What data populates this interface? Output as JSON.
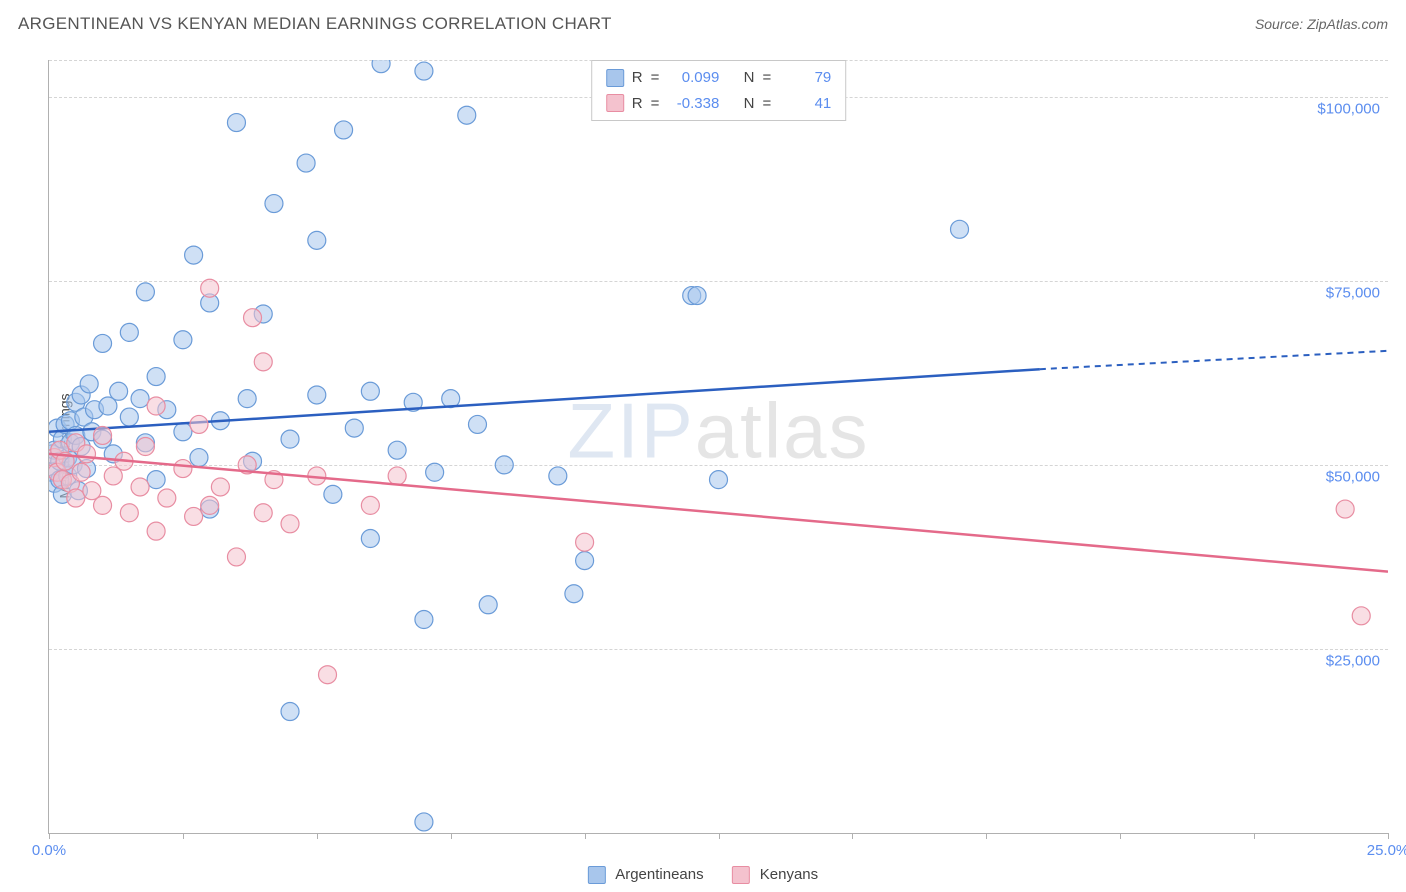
{
  "title": "ARGENTINEAN VS KENYAN MEDIAN EARNINGS CORRELATION CHART",
  "source_label": "Source: ZipAtlas.com",
  "watermark": {
    "part1": "ZIP",
    "part2": "atlas"
  },
  "ylabel": "Median Earnings",
  "chart": {
    "type": "scatter",
    "xlim": [
      0,
      25
    ],
    "ylim": [
      0,
      105000
    ],
    "x_ticks": [
      0,
      2.5,
      5,
      7.5,
      10,
      12.5,
      15,
      17.5,
      20,
      22.5,
      25
    ],
    "x_tick_labels": {
      "0": "0.0%",
      "25": "25.0%"
    },
    "y_gridlines": [
      25000,
      50000,
      75000,
      100000,
      105000
    ],
    "y_tick_labels": {
      "25000": "$25,000",
      "50000": "$50,000",
      "75000": "$75,000",
      "100000": "$100,000"
    },
    "background_color": "#ffffff",
    "grid_color": "#d5d5d5",
    "axis_color": "#b0b0b0",
    "tick_label_color": "#5b8def",
    "point_radius": 9,
    "point_opacity": 0.55,
    "series": [
      {
        "name": "Argentineans",
        "color_fill": "#a8c6ec",
        "color_stroke": "#6a9bd8",
        "line_color": "#2b5fc0",
        "r_value": "0.099",
        "n_value": "79",
        "regression": {
          "x1": 0,
          "y1": 54500,
          "x2": 18.5,
          "y2": 63000,
          "x2_dash": 25,
          "y2_dash": 65500
        },
        "points": [
          [
            0.05,
            49000
          ],
          [
            0.05,
            51500
          ],
          [
            0.1,
            47500
          ],
          [
            0.1,
            52000
          ],
          [
            0.15,
            55000
          ],
          [
            0.2,
            48000
          ],
          [
            0.2,
            50500
          ],
          [
            0.25,
            53500
          ],
          [
            0.25,
            46000
          ],
          [
            0.3,
            55500
          ],
          [
            0.35,
            51000
          ],
          [
            0.35,
            48500
          ],
          [
            0.4,
            56000
          ],
          [
            0.4,
            53000
          ],
          [
            0.45,
            50000
          ],
          [
            0.5,
            58500
          ],
          [
            0.5,
            54000
          ],
          [
            0.55,
            46500
          ],
          [
            0.6,
            59500
          ],
          [
            0.6,
            52500
          ],
          [
            0.65,
            56500
          ],
          [
            0.7,
            49500
          ],
          [
            0.75,
            61000
          ],
          [
            0.8,
            54500
          ],
          [
            0.85,
            57500
          ],
          [
            1.0,
            66500
          ],
          [
            1.0,
            53500
          ],
          [
            1.1,
            58000
          ],
          [
            1.2,
            51500
          ],
          [
            1.3,
            60000
          ],
          [
            1.5,
            56500
          ],
          [
            1.5,
            68000
          ],
          [
            1.7,
            59000
          ],
          [
            1.8,
            53000
          ],
          [
            1.8,
            73500
          ],
          [
            2.0,
            62000
          ],
          [
            2.0,
            48000
          ],
          [
            2.2,
            57500
          ],
          [
            2.5,
            67000
          ],
          [
            2.5,
            54500
          ],
          [
            2.7,
            78500
          ],
          [
            2.8,
            51000
          ],
          [
            3.0,
            44000
          ],
          [
            3.0,
            72000
          ],
          [
            3.2,
            56000
          ],
          [
            3.5,
            96500
          ],
          [
            3.7,
            59000
          ],
          [
            3.8,
            50500
          ],
          [
            4.0,
            70500
          ],
          [
            4.2,
            85500
          ],
          [
            4.5,
            16500
          ],
          [
            4.5,
            53500
          ],
          [
            4.8,
            91000
          ],
          [
            5.0,
            59500
          ],
          [
            5.0,
            80500
          ],
          [
            5.3,
            46000
          ],
          [
            5.5,
            95500
          ],
          [
            5.7,
            55000
          ],
          [
            6.0,
            40000
          ],
          [
            6.0,
            60000
          ],
          [
            6.2,
            104500
          ],
          [
            6.5,
            52000
          ],
          [
            6.8,
            58500
          ],
          [
            7.0,
            103500
          ],
          [
            7.0,
            29000
          ],
          [
            7.0,
            1500
          ],
          [
            7.2,
            49000
          ],
          [
            7.5,
            59000
          ],
          [
            7.8,
            97500
          ],
          [
            8.0,
            55500
          ],
          [
            8.2,
            31000
          ],
          [
            8.5,
            50000
          ],
          [
            9.5,
            48500
          ],
          [
            9.8,
            32500
          ],
          [
            10.0,
            37000
          ],
          [
            12.0,
            73000
          ],
          [
            12.1,
            73000
          ],
          [
            12.5,
            48000
          ],
          [
            17.0,
            82000
          ]
        ]
      },
      {
        "name": "Kenyans",
        "color_fill": "#f4c2ce",
        "color_stroke": "#e88da2",
        "line_color": "#e46a8a",
        "r_value": "-0.338",
        "n_value": "41",
        "regression": {
          "x1": 0,
          "y1": 51500,
          "x2": 25,
          "y2": 35500
        },
        "points": [
          [
            0.1,
            51000
          ],
          [
            0.15,
            49000
          ],
          [
            0.2,
            52000
          ],
          [
            0.25,
            48000
          ],
          [
            0.3,
            50500
          ],
          [
            0.4,
            47500
          ],
          [
            0.5,
            53000
          ],
          [
            0.5,
            45500
          ],
          [
            0.6,
            49000
          ],
          [
            0.7,
            51500
          ],
          [
            0.8,
            46500
          ],
          [
            1.0,
            54000
          ],
          [
            1.0,
            44500
          ],
          [
            1.2,
            48500
          ],
          [
            1.4,
            50500
          ],
          [
            1.5,
            43500
          ],
          [
            1.7,
            47000
          ],
          [
            1.8,
            52500
          ],
          [
            2.0,
            41000
          ],
          [
            2.0,
            58000
          ],
          [
            2.2,
            45500
          ],
          [
            2.5,
            49500
          ],
          [
            2.7,
            43000
          ],
          [
            2.8,
            55500
          ],
          [
            3.0,
            44500
          ],
          [
            3.0,
            74000
          ],
          [
            3.2,
            47000
          ],
          [
            3.5,
            37500
          ],
          [
            3.7,
            50000
          ],
          [
            3.8,
            70000
          ],
          [
            4.0,
            64000
          ],
          [
            4.0,
            43500
          ],
          [
            4.2,
            48000
          ],
          [
            4.5,
            42000
          ],
          [
            5.0,
            48500
          ],
          [
            5.2,
            21500
          ],
          [
            6.0,
            44500
          ],
          [
            6.5,
            48500
          ],
          [
            10.0,
            39500
          ],
          [
            24.2,
            44000
          ],
          [
            24.5,
            29500
          ]
        ]
      }
    ]
  },
  "legend_bottom": [
    {
      "label": "Argentineans",
      "fill": "#a8c6ec",
      "stroke": "#6a9bd8"
    },
    {
      "label": "Kenyans",
      "fill": "#f4c2ce",
      "stroke": "#e88da2"
    }
  ],
  "legend_box": {
    "r_label": "R",
    "n_label": "N",
    "eq": "="
  }
}
